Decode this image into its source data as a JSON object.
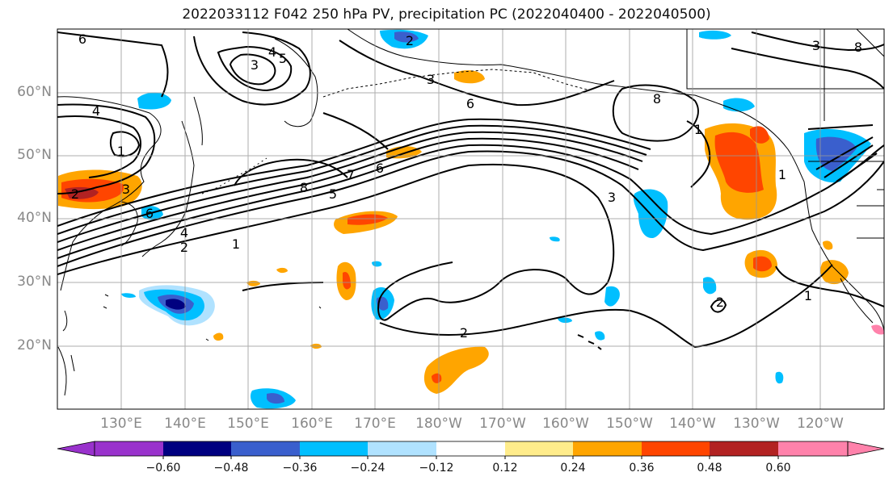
{
  "title": "2022033112 F042 250 hPa PV, precipitation PC (2022040400 - 2022040500)",
  "map": {
    "lat_labels": [
      "60°N",
      "50°N",
      "40°N",
      "30°N",
      "20°N"
    ],
    "lon_labels": [
      "130°E",
      "140°E",
      "150°E",
      "160°E",
      "170°E",
      "180°W",
      "170°W",
      "160°W",
      "150°W",
      "140°W",
      "130°W",
      "120°W"
    ],
    "contour_labels": [
      "6",
      "3",
      "4",
      "5",
      "2",
      "3",
      "6",
      "8",
      "4",
      "1",
      "2",
      "3",
      "6",
      "8",
      "7",
      "6",
      "5",
      "3",
      "4",
      "1",
      "2",
      "1",
      "1",
      "2",
      "2",
      "1",
      "8",
      "3"
    ],
    "colors": {
      "contour": "#000000",
      "coast": "#000000",
      "grid": "#888888"
    }
  },
  "colorbar": {
    "ticks": [
      "−0.60",
      "−0.48",
      "−0.36",
      "−0.24",
      "−0.12",
      "0.12",
      "0.24",
      "0.36",
      "0.48",
      "0.60"
    ],
    "colors": [
      "#9932cc",
      "#000080",
      "#3a5fcd",
      "#00bfff",
      "#b0e2ff",
      "#ffffff",
      "#ffec8b",
      "#ffa500",
      "#ff4500",
      "#b22222",
      "#ff82ab"
    ]
  }
}
